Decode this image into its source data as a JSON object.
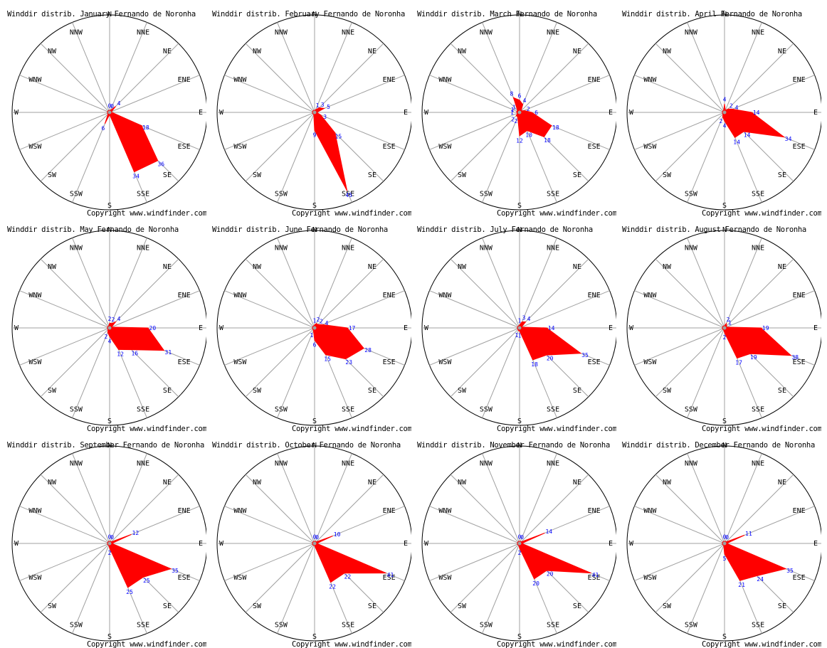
{
  "directions": [
    "N",
    "NNE",
    "NE",
    "ENE",
    "E",
    "ESE",
    "SE",
    "SSE",
    "S",
    "SSW",
    "SW",
    "WSW",
    "W",
    "WNW",
    "NW",
    "NNW"
  ],
  "colors": {
    "rose_fill": "#ff0000",
    "value_label": "#0000ff",
    "grid_line": "#a0a0a0",
    "circle": "#000000"
  },
  "chart_data": [
    {
      "type": "radar",
      "title": "Winddir distrib. January Fernando de Noronha",
      "copyright": "Copyright www.windfinder.com",
      "labels": [
        "0",
        "0",
        "4",
        "",
        "",
        "18",
        "36",
        "34",
        "",
        "6",
        "",
        "",
        "",
        "",
        "",
        ""
      ]
    },
    {
      "type": "radar",
      "title": "Winddir distrib. February Fernando de Noronha",
      "copyright": "Copyright www.windfinder.com",
      "labels": [
        "",
        "1",
        "3",
        "5",
        "",
        "3",
        "15",
        "45",
        "9",
        "",
        "",
        "",
        "",
        "",
        "",
        ""
      ]
    },
    {
      "type": "radar",
      "title": "Winddir distrib. March Fernando de Noronha",
      "copyright": "Copyright www.windfinder.com",
      "labels": [
        "6",
        "4",
        "",
        "2",
        "6",
        "18",
        "18",
        "10",
        "12",
        "2",
        "2",
        "",
        "1",
        "1",
        "1",
        "8"
      ]
    },
    {
      "type": "radar",
      "title": "Winddir distrib. April Fernando de Noronha",
      "copyright": "Copyright www.windfinder.com",
      "labels": [
        "4",
        "",
        "2",
        "4",
        "14",
        "34",
        "14",
        "14",
        "4",
        "2",
        "",
        "",
        "",
        "",
        "",
        ""
      ]
    },
    {
      "type": "radar",
      "title": "Winddir distrib. May Fernando de Noronha",
      "copyright": "Copyright www.windfinder.com",
      "labels": [
        "2",
        "2",
        "4",
        "",
        "20",
        "31",
        "16",
        "12",
        "4",
        "2",
        "",
        "",
        "",
        "",
        "",
        ""
      ]
    },
    {
      "type": "radar",
      "title": "Winddir distrib. June Fernando de Noronha",
      "copyright": "Copyright www.windfinder.com",
      "labels": [
        "1",
        "2",
        "2",
        "4",
        "17",
        "28",
        "23",
        "15",
        "6",
        "1",
        "",
        "",
        "",
        "",
        "",
        ""
      ]
    },
    {
      "type": "radar",
      "title": "Winddir distrib. July Fernando de Noronha",
      "copyright": "Copyright www.windfinder.com",
      "labels": [
        "1",
        "3",
        "4",
        "",
        "14",
        "35",
        "20",
        "18",
        "1",
        "1",
        "",
        "",
        "",
        "",
        "",
        ""
      ]
    },
    {
      "type": "radar",
      "title": "Winddir distrib. August Fernando de Noronha",
      "copyright": "Copyright www.windfinder.com",
      "labels": [
        "",
        "2",
        "1",
        "",
        "19",
        "38",
        "19",
        "17",
        "2",
        "",
        "",
        "",
        "",
        "",
        "",
        ""
      ]
    },
    {
      "type": "radar",
      "title": "Winddir distrib. September Fernando de Noronha",
      "copyright": "Copyright www.windfinder.com",
      "labels": [
        "0",
        "0",
        "",
        "12",
        "",
        "35",
        "25",
        "25",
        "2",
        "",
        "",
        "",
        "",
        "",
        "",
        ""
      ]
    },
    {
      "type": "radar",
      "title": "Winddir distrib. October Fernando de Noronha",
      "copyright": "Copyright www.windfinder.com",
      "labels": [
        "0",
        "0",
        "",
        "10",
        "",
        "41",
        "22",
        "22",
        "",
        "",
        "",
        "",
        "",
        "",
        "",
        ""
      ]
    },
    {
      "type": "radar",
      "title": "Winddir distrib. November Fernando de Noronha",
      "copyright": "Copyright www.windfinder.com",
      "labels": [
        "0",
        "0",
        "",
        "14",
        "",
        "41",
        "20",
        "20",
        "2",
        "",
        "",
        "",
        "",
        "",
        "",
        ""
      ]
    },
    {
      "type": "radar",
      "title": "Winddir distrib. December Fernando de Noronha",
      "copyright": "Copyright www.windfinder.com",
      "labels": [
        "0",
        "0",
        "",
        "11",
        "",
        "35",
        "24",
        "21",
        "5",
        "",
        "",
        "",
        "",
        "",
        "",
        ""
      ]
    }
  ]
}
